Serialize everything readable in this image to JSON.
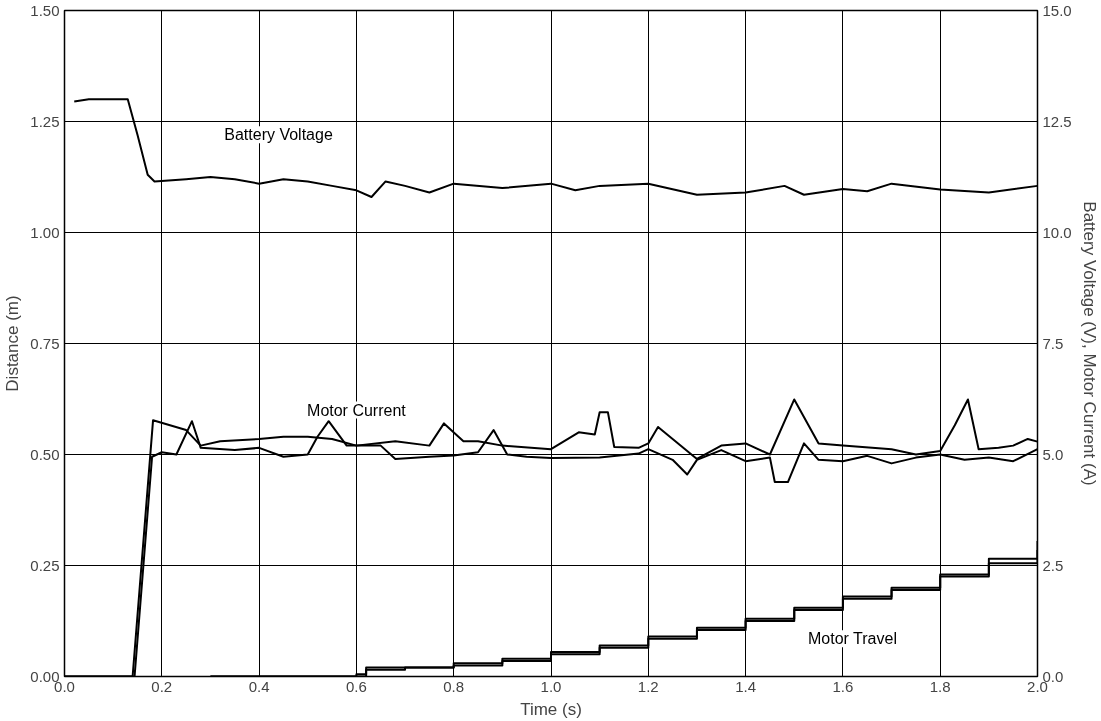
{
  "chart_data": {
    "type": "line",
    "xlabel": "Time (s)",
    "ylabel": "Distance (m)",
    "y2label": "Battery Voltage (V), Motor Current (A)",
    "xlim": [
      0,
      2.0
    ],
    "ylim": [
      0,
      1.5
    ],
    "y2lim": [
      0,
      15
    ],
    "xticks": [
      {
        "value": 0,
        "label": "0.0"
      },
      {
        "value": 0.2,
        "label": "0.2"
      },
      {
        "value": 0.4,
        "label": "0.4"
      },
      {
        "value": 0.6,
        "label": "0.6"
      },
      {
        "value": 0.8,
        "label": "0.8"
      },
      {
        "value": 1.0,
        "label": "1.0"
      },
      {
        "value": 1.2,
        "label": "1.2"
      },
      {
        "value": 1.4,
        "label": "1.4"
      },
      {
        "value": 1.6,
        "label": "1.6"
      },
      {
        "value": 1.8,
        "label": "1.8"
      },
      {
        "value": 2.0,
        "label": "2.0"
      }
    ],
    "yticks": [
      {
        "value": 0,
        "label": "0.00"
      },
      {
        "value": 0.25,
        "label": "0.25"
      },
      {
        "value": 0.5,
        "label": "0.50"
      },
      {
        "value": 0.75,
        "label": "0.75"
      },
      {
        "value": 1.0,
        "label": "1.00"
      },
      {
        "value": 1.25,
        "label": "1.25"
      },
      {
        "value": 1.5,
        "label": "1.50"
      }
    ],
    "y2ticks": [
      {
        "value": 0,
        "label": "0.0"
      },
      2.5,
      {
        "value": 5,
        "label": "5.0"
      },
      7.5,
      {
        "value": 10,
        "label": "10.0"
      },
      12.5,
      {
        "value": 15,
        "label": "15.0"
      }
    ],
    "grid": true,
    "marker": "none",
    "line_style": "solid",
    "series": [
      {
        "color": "#000000",
        "axis": "y2",
        "x": [
          0.02,
          0.05,
          0.1,
          0.13,
          0.15,
          0.171,
          0.185,
          0.25,
          0.3,
          0.35,
          0.4,
          0.45,
          0.5,
          0.55,
          0.6,
          0.631,
          0.66,
          0.7,
          0.75,
          0.8,
          0.9,
          1.0,
          1.05,
          1.1,
          1.2,
          1.3,
          1.4,
          1.48,
          1.52,
          1.6,
          1.65,
          1.7,
          1.8,
          1.9,
          2.0
        ],
        "values": [
          12.95,
          13.0,
          13.0,
          13.0,
          12.2,
          11.3,
          11.15,
          11.2,
          11.25,
          11.2,
          11.1,
          11.2,
          11.15,
          11.05,
          10.95,
          10.8,
          11.15,
          11.05,
          10.9,
          11.1,
          11.0,
          11.1,
          10.95,
          11.05,
          11.1,
          10.85,
          10.9,
          11.05,
          10.85,
          10.98,
          10.93,
          11.1,
          10.97,
          10.9,
          11.05
        ]
      },
      {
        "color": "#000000",
        "axis": "y2",
        "x": [
          0.0,
          0.14,
          0.182,
          0.25,
          0.28,
          0.32,
          0.4,
          0.45,
          0.5,
          0.55,
          0.6,
          0.68,
          0.75,
          0.78,
          0.82,
          0.85,
          0.9,
          1.0,
          1.057,
          1.09,
          1.1,
          1.117,
          1.13,
          1.18,
          1.2,
          1.22,
          1.3,
          1.35,
          1.4,
          1.45,
          1.5,
          1.55,
          1.6,
          1.7,
          1.75,
          1.8,
          1.83,
          1.857,
          1.879,
          1.92,
          1.95,
          1.98,
          2.0
        ],
        "values": [
          0,
          0,
          5.77,
          5.55,
          5.2,
          5.3,
          5.35,
          5.4,
          5.4,
          5.35,
          5.2,
          5.3,
          5.2,
          5.7,
          5.3,
          5.3,
          5.2,
          5.12,
          5.5,
          5.45,
          5.95,
          5.95,
          5.17,
          5.15,
          5.25,
          5.62,
          4.9,
          5.2,
          5.25,
          5.0,
          6.24,
          5.25,
          5.2,
          5.12,
          5.0,
          5.08,
          5.66,
          6.24,
          5.12,
          5.15,
          5.2,
          5.35,
          5.29
        ]
      },
      {
        "color": "#000000",
        "axis": "y2",
        "x": [
          0.0,
          0.144,
          0.18,
          0.2,
          0.23,
          0.262,
          0.28,
          0.35,
          0.4,
          0.45,
          0.5,
          0.52,
          0.543,
          0.58,
          0.65,
          0.68,
          0.75,
          0.8,
          0.85,
          0.882,
          0.91,
          0.95,
          1.0,
          1.1,
          1.18,
          1.2,
          1.25,
          1.28,
          1.3,
          1.35,
          1.4,
          1.45,
          1.46,
          1.487,
          1.52,
          1.55,
          1.6,
          1.65,
          1.7,
          1.75,
          1.8,
          1.85,
          1.9,
          1.95,
          2.0
        ],
        "values": [
          0,
          0,
          4.95,
          5.05,
          5.0,
          5.75,
          5.15,
          5.1,
          5.15,
          4.95,
          5.0,
          5.4,
          5.75,
          5.2,
          5.2,
          4.9,
          4.95,
          4.98,
          5.05,
          5.55,
          5.0,
          4.95,
          4.92,
          4.93,
          5.02,
          5.12,
          4.88,
          4.55,
          4.88,
          5.1,
          4.85,
          4.93,
          4.38,
          4.38,
          5.25,
          4.88,
          4.85,
          4.97,
          4.8,
          4.93,
          5.0,
          4.88,
          4.93,
          4.85,
          5.12
        ]
      },
      {
        "type": "step",
        "color": "#000000",
        "x": [
          0.3,
          0.4,
          0.5,
          0.6,
          0.62,
          0.7,
          0.8,
          0.9,
          1.0,
          1.1,
          1.2,
          1.3,
          1.4,
          1.5,
          1.6,
          1.7,
          1.8,
          1.9,
          2.0
        ],
        "values": [
          0,
          0,
          0,
          0.005,
          0.02,
          0.02,
          0.03,
          0.04,
          0.055,
          0.07,
          0.09,
          0.11,
          0.13,
          0.155,
          0.18,
          0.2,
          0.23,
          0.265,
          0.305
        ]
      },
      {
        "type": "step",
        "color": "#000000",
        "x": [
          0.3,
          0.4,
          0.5,
          0.6,
          0.62,
          0.7,
          0.8,
          0.9,
          1.0,
          1.1,
          1.2,
          1.3,
          1.4,
          1.5,
          1.6,
          1.7,
          1.8,
          1.9,
          2.0
        ],
        "values": [
          0,
          0,
          0,
          0,
          0.015,
          0.02,
          0.025,
          0.035,
          0.05,
          0.065,
          0.085,
          0.105,
          0.125,
          0.15,
          0.175,
          0.195,
          0.225,
          0.255,
          0.285
        ]
      }
    ],
    "annotations": [
      "Battery Voltage",
      "Motor Current",
      "Motor Travel"
    ]
  }
}
